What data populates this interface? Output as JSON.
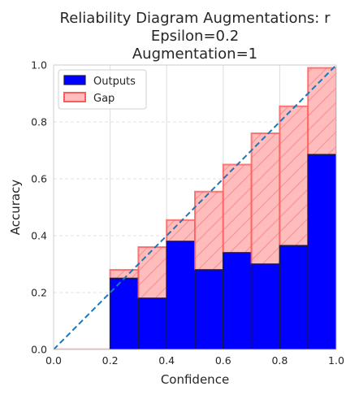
{
  "chart_data": {
    "type": "bar",
    "title_lines": [
      "Reliability Diagram Augmentations: r",
      "Epsilon=0.2",
      "Augmentation=1"
    ],
    "xlabel": "Confidence",
    "ylabel": "Accuracy",
    "xlim": [
      0.0,
      1.0
    ],
    "ylim": [
      0.0,
      1.0
    ],
    "x_ticks": [
      "0.0",
      "0.2",
      "0.4",
      "0.6",
      "0.8",
      "1.0"
    ],
    "y_ticks": [
      "0.0",
      "0.2",
      "0.4",
      "0.6",
      "0.8",
      "1.0"
    ],
    "grid": true,
    "legend_position": "top-left",
    "bins": [
      {
        "left": 0.0,
        "right": 0.1,
        "output": 0.0,
        "expected": 0.0
      },
      {
        "left": 0.1,
        "right": 0.2,
        "output": 0.0,
        "expected": 0.0
      },
      {
        "left": 0.2,
        "right": 0.3,
        "output": 0.25,
        "expected": 0.28
      },
      {
        "left": 0.3,
        "right": 0.4,
        "output": 0.18,
        "expected": 0.36
      },
      {
        "left": 0.4,
        "right": 0.5,
        "output": 0.38,
        "expected": 0.455
      },
      {
        "left": 0.5,
        "right": 0.6,
        "output": 0.28,
        "expected": 0.555
      },
      {
        "left": 0.6,
        "right": 0.7,
        "output": 0.34,
        "expected": 0.65
      },
      {
        "left": 0.7,
        "right": 0.8,
        "output": 0.3,
        "expected": 0.76
      },
      {
        "left": 0.8,
        "right": 0.9,
        "output": 0.365,
        "expected": 0.855
      },
      {
        "left": 0.9,
        "right": 1.0,
        "output": 0.685,
        "expected": 0.99
      }
    ],
    "series": [
      {
        "name": "Outputs",
        "color": "#0000ff",
        "edge": "#1a1a4a"
      },
      {
        "name": "Gap",
        "color": "#ffbcbc",
        "edge": "#ff5a5a"
      }
    ],
    "diagonal_color": "#1f77b4"
  }
}
